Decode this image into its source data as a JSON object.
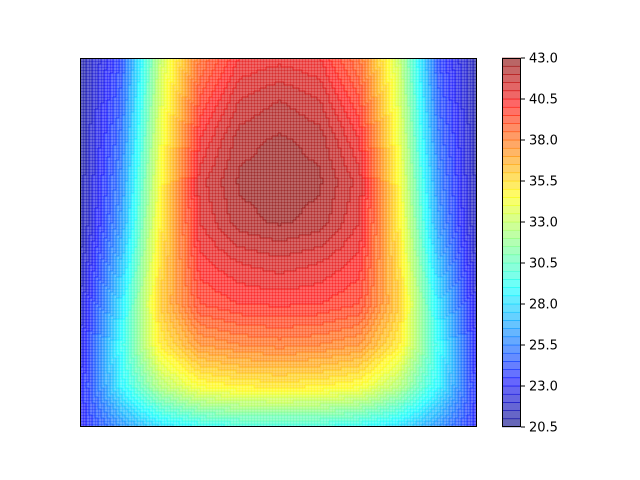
{
  "chart_data": {
    "type": "heatmap",
    "subtype": "filled-contour",
    "title": "",
    "xlabel": "",
    "ylabel": "",
    "x_ticks_visible": false,
    "y_ticks_visible": false,
    "colormap": "jet",
    "alpha": 0.6,
    "vmin": 20.5,
    "vmax": 43.0,
    "levels_step": 0.5,
    "x": [
      0,
      1,
      2,
      3,
      4,
      5,
      6,
      7,
      8,
      9,
      10
    ],
    "y": [
      0,
      1,
      2,
      3,
      4,
      5,
      6,
      7,
      8,
      9
    ],
    "z": [
      [
        21.0,
        24.0,
        33.0,
        38.5,
        40.5,
        40.8,
        40.5,
        38.5,
        33.0,
        24.0,
        21.0
      ],
      [
        21.0,
        24.5,
        33.5,
        39.5,
        41.5,
        42.0,
        41.5,
        39.5,
        33.5,
        24.5,
        21.0
      ],
      [
        21.0,
        25.0,
        34.0,
        40.5,
        42.3,
        42.6,
        42.3,
        40.5,
        34.0,
        25.0,
        21.0
      ],
      [
        21.0,
        25.5,
        34.5,
        41.3,
        42.6,
        42.8,
        42.6,
        41.3,
        34.5,
        25.5,
        21.0
      ],
      [
        21.0,
        26.0,
        35.0,
        41.0,
        42.3,
        42.6,
        42.3,
        41.0,
        35.0,
        26.0,
        21.0
      ],
      [
        21.5,
        27.0,
        35.5,
        40.3,
        41.0,
        41.3,
        41.0,
        40.3,
        35.5,
        27.0,
        21.5
      ],
      [
        22.0,
        28.0,
        36.0,
        39.5,
        40.0,
        40.1,
        40.0,
        39.5,
        36.0,
        28.0,
        22.0
      ],
      [
        22.5,
        29.0,
        35.0,
        37.5,
        38.0,
        38.2,
        38.0,
        37.5,
        35.0,
        29.0,
        22.5
      ],
      [
        23.0,
        28.5,
        32.5,
        34.5,
        35.0,
        35.2,
        35.0,
        34.5,
        32.5,
        28.5,
        23.0
      ],
      [
        23.0,
        26.0,
        28.0,
        29.0,
        29.5,
        29.5,
        29.5,
        29.0,
        28.0,
        26.0,
        23.0
      ]
    ],
    "colorbar": {
      "ticks": [
        20.5,
        23.0,
        25.5,
        28.0,
        30.5,
        33.0,
        35.5,
        38.0,
        40.5,
        43.0
      ],
      "tick_labels": [
        "20.5",
        "23.0",
        "25.5",
        "28.0",
        "30.5",
        "33.0",
        "35.5",
        "38.0",
        "40.5",
        "43.0"
      ]
    }
  }
}
